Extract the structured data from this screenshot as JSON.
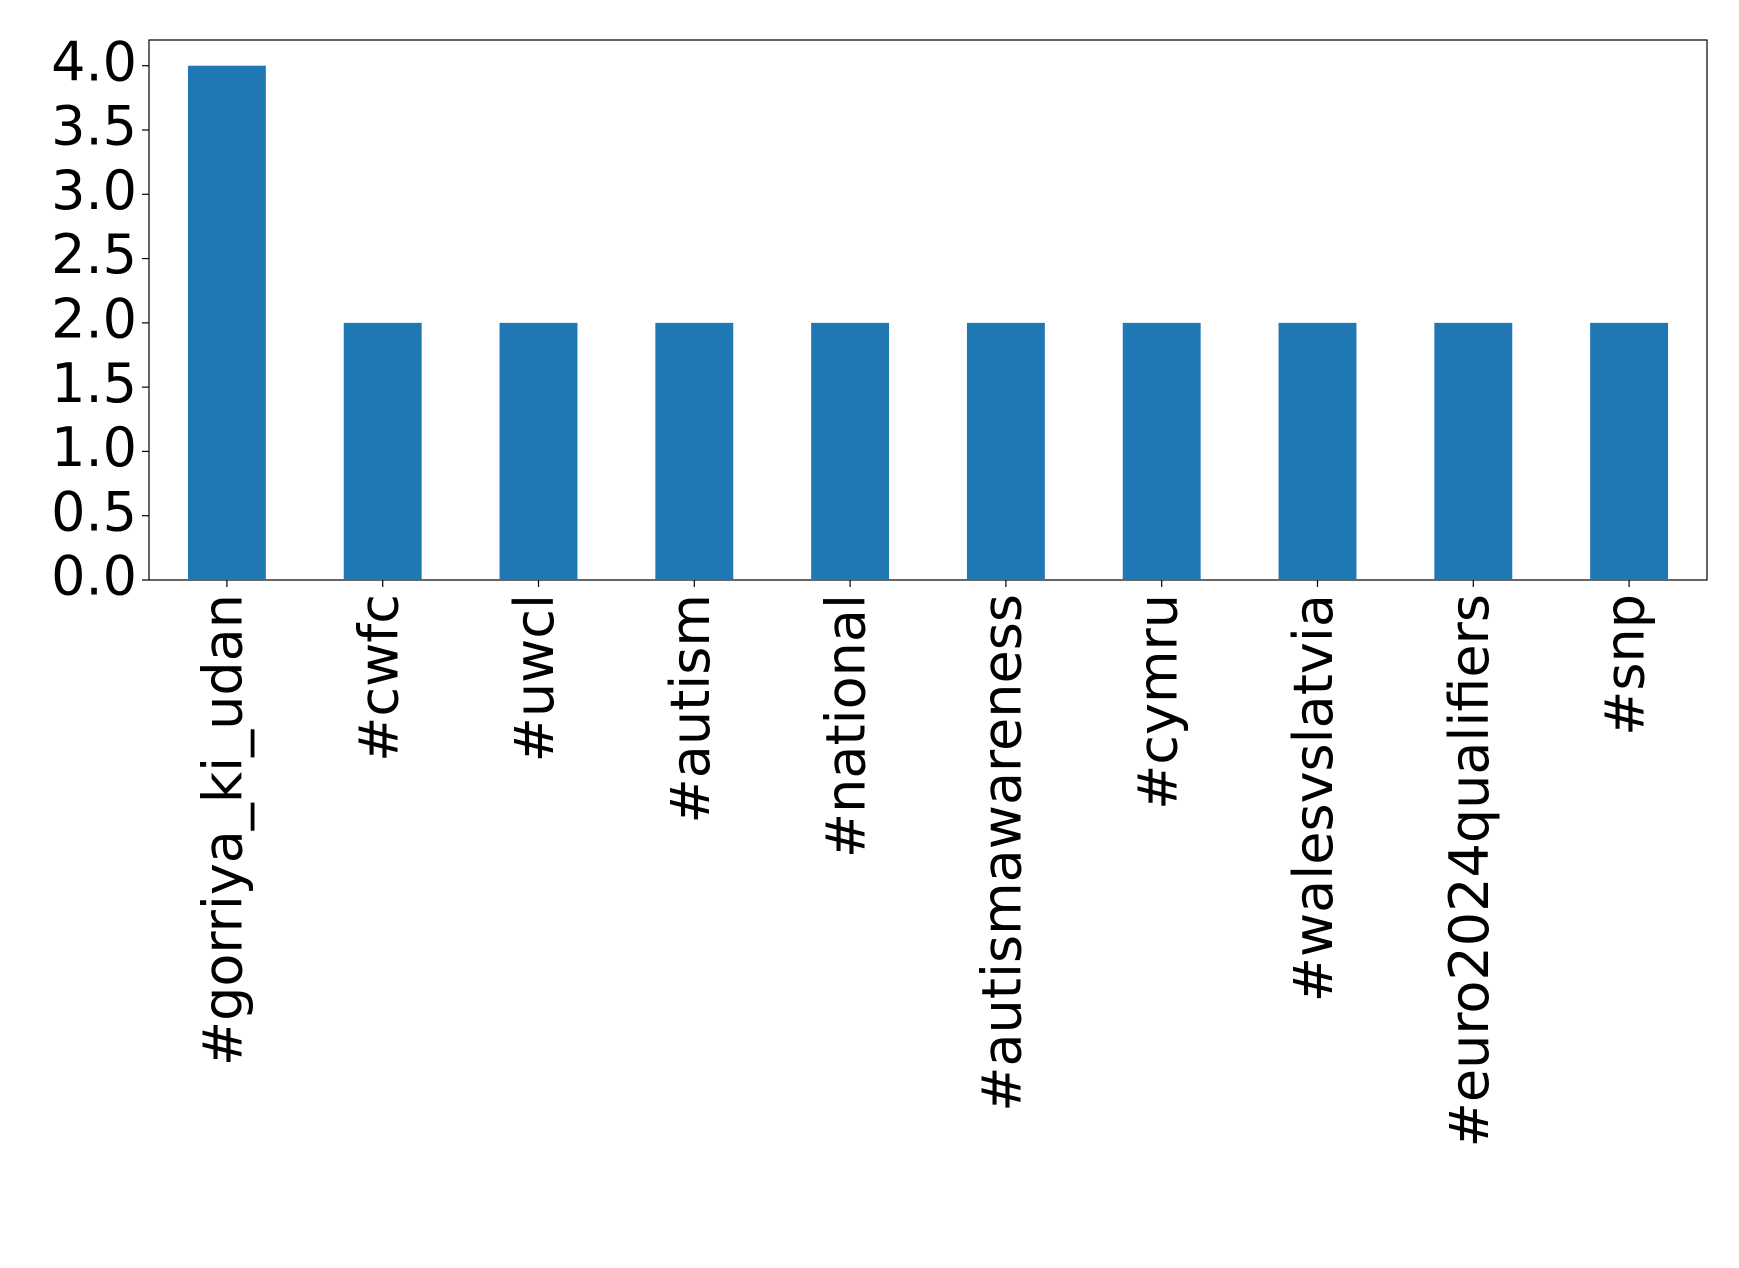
{
  "chart_data": {
    "type": "bar",
    "categories": [
      "#gorriya_ki_udan",
      "#cwfc",
      "#uwcl",
      "#autism",
      "#national",
      "#autismawareness",
      "#cymru",
      "#walesvslatvia",
      "#euro2024qualifiers",
      "#snp"
    ],
    "values": [
      4,
      2,
      2,
      2,
      2,
      2,
      2,
      2,
      2,
      2
    ],
    "color": "#1f77b4",
    "ylim": [
      0,
      4.2
    ],
    "yticks": [
      {
        "value": 0,
        "label": "0.0"
      },
      0.5,
      {
        "value": 1,
        "label": "1.0"
      },
      1.5,
      {
        "value": 2,
        "label": "2.0"
      },
      2.5,
      {
        "value": 3,
        "label": "3.0"
      },
      3.5,
      {
        "value": 4,
        "label": "4.0"
      }
    ],
    "grid": false
  }
}
